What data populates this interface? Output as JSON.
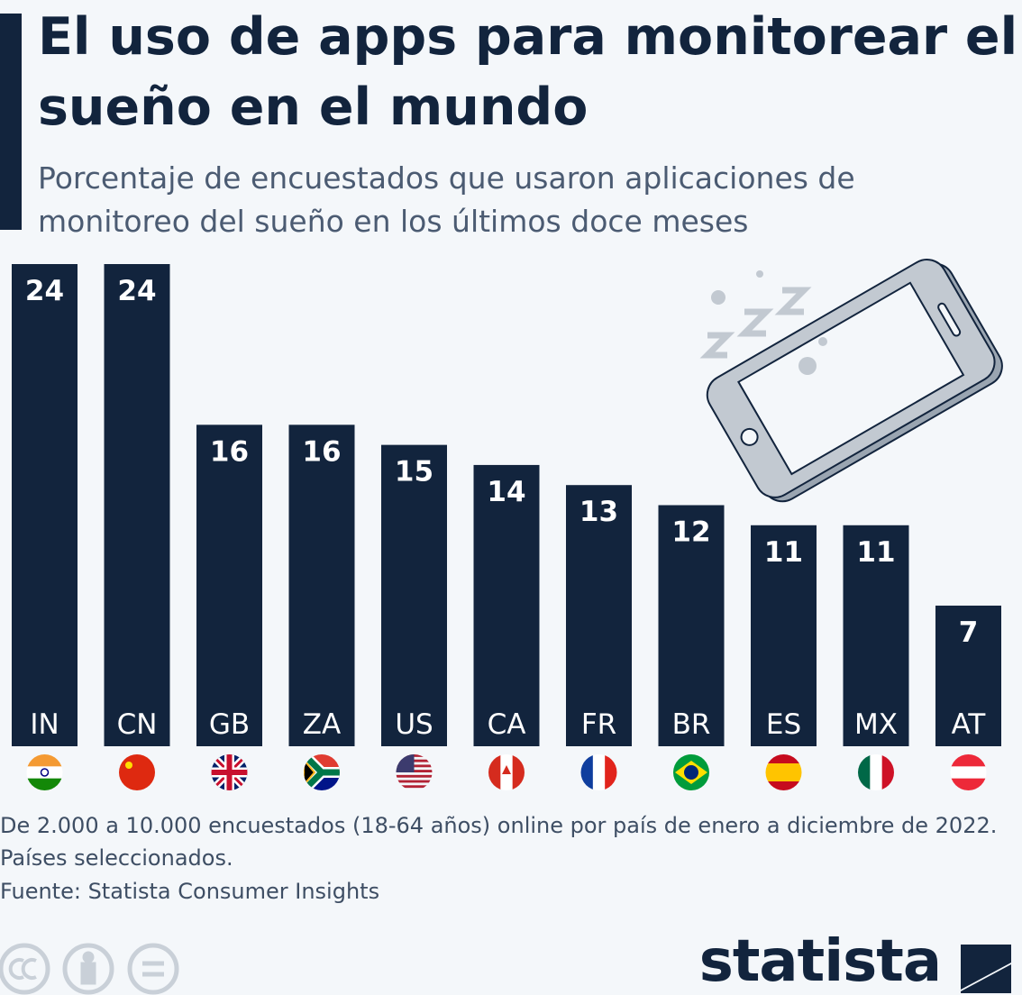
{
  "chart_data": {
    "type": "bar",
    "title": "El uso de apps para monitorear el sueño en el mundo",
    "subtitle": "Porcentaje de encuestados que usaron aplicaciones de monitoreo del sueño en los últimos doce meses",
    "categories": [
      "IN",
      "CN",
      "GB",
      "ZA",
      "US",
      "CA",
      "FR",
      "BR",
      "ES",
      "MX",
      "AT"
    ],
    "values": [
      24,
      24,
      16,
      16,
      15,
      14,
      13,
      12,
      11,
      11,
      7
    ],
    "color": "#12243d",
    "note": "De 2.000 a 10.000 encuestados (18-64 años) online por país de enero a diciembre de 2022. Países seleccionados.",
    "source": "Fuente: Statista Consumer Insights",
    "brand": "statista"
  }
}
